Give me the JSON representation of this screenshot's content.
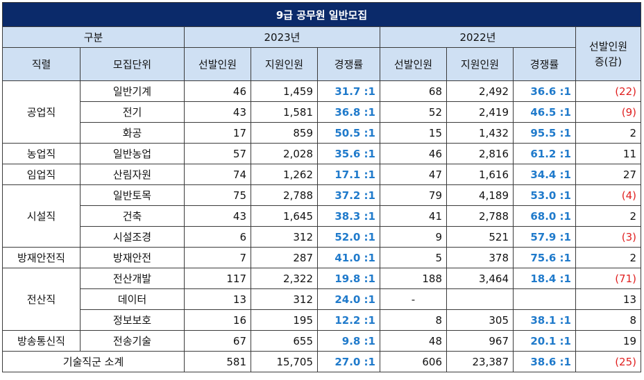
{
  "title": "9급 공무원 일반모집",
  "header": {
    "gubun": "구분",
    "year_2023": "2023년",
    "year_2022": "2022년",
    "change_label": "선발인원\n증(감)",
    "job": "직렬",
    "unit": "모집단위",
    "selected": "선발인원",
    "applicants": "지원인원",
    "rate": "경쟁률"
  },
  "groups": [
    {
      "job": "공업직",
      "rows": [
        {
          "unit": "일반기계",
          "s23": "46",
          "a23": "1,459",
          "r23": "31.7 :1",
          "s22": "68",
          "a22": "2,492",
          "r22": "36.6 :1",
          "chg": "(22)",
          "neg": true
        },
        {
          "unit": "전기",
          "s23": "43",
          "a23": "1,581",
          "r23": "36.8 :1",
          "s22": "52",
          "a22": "2,419",
          "r22": "46.5 :1",
          "chg": "(9)",
          "neg": true
        },
        {
          "unit": "화공",
          "s23": "17",
          "a23": "859",
          "r23": "50.5 :1",
          "s22": "15",
          "a22": "1,432",
          "r22": "95.5 :1",
          "chg": "2",
          "neg": false
        }
      ]
    },
    {
      "job": "농업직",
      "rows": [
        {
          "unit": "일반농업",
          "s23": "57",
          "a23": "2,028",
          "r23": "35.6 :1",
          "s22": "46",
          "a22": "2,816",
          "r22": "61.2 :1",
          "chg": "11",
          "neg": false
        }
      ]
    },
    {
      "job": "임업직",
      "rows": [
        {
          "unit": "산림자원",
          "s23": "74",
          "a23": "1,262",
          "r23": "17.1 :1",
          "s22": "47",
          "a22": "1,616",
          "r22": "34.4 :1",
          "chg": "27",
          "neg": false
        }
      ]
    },
    {
      "job": "시설직",
      "rows": [
        {
          "unit": "일반토목",
          "s23": "75",
          "a23": "2,788",
          "r23": "37.2 :1",
          "s22": "79",
          "a22": "4,189",
          "r22": "53.0 :1",
          "chg": "(4)",
          "neg": true
        },
        {
          "unit": "건축",
          "s23": "43",
          "a23": "1,645",
          "r23": "38.3 :1",
          "s22": "41",
          "a22": "2,788",
          "r22": "68.0 :1",
          "chg": "2",
          "neg": false
        },
        {
          "unit": "시설조경",
          "s23": "6",
          "a23": "312",
          "r23": "52.0 :1",
          "s22": "9",
          "a22": "521",
          "r22": "57.9 :1",
          "chg": "(3)",
          "neg": true
        }
      ]
    },
    {
      "job": "방재안전직",
      "rows": [
        {
          "unit": "방재안전",
          "s23": "7",
          "a23": "287",
          "r23": "41.0 :1",
          "s22": "5",
          "a22": "378",
          "r22": "75.6 :1",
          "chg": "2",
          "neg": false
        }
      ]
    },
    {
      "job": "전산직",
      "rows": [
        {
          "unit": "전산개발",
          "s23": "117",
          "a23": "2,322",
          "r23": "19.8 :1",
          "s22": "188",
          "a22": "3,464",
          "r22": "18.4 :1",
          "chg": "(71)",
          "neg": true
        },
        {
          "unit": "데이터",
          "s23": "13",
          "a23": "312",
          "r23": "24.0 :1",
          "s22": "-",
          "a22": "",
          "r22": "",
          "chg": "13",
          "neg": false,
          "dash": true
        },
        {
          "unit": "정보보호",
          "s23": "16",
          "a23": "195",
          "r23": "12.2 :1",
          "s22": "8",
          "a22": "305",
          "r22": "38.1 :1",
          "chg": "8",
          "neg": false
        }
      ]
    },
    {
      "job": "방송통신직",
      "rows": [
        {
          "unit": "전송기술",
          "s23": "67",
          "a23": "655",
          "r23": "9.8 :1",
          "s22": "48",
          "a22": "967",
          "r22": "20.1 :1",
          "chg": "19",
          "neg": false
        }
      ]
    }
  ],
  "subtotal": {
    "label": "기술직군 소계",
    "s23": "581",
    "a23": "15,705",
    "r23": "27.0 :1",
    "s22": "606",
    "a22": "23,387",
    "r22": "38.6 :1",
    "chg": "(25)"
  },
  "colors": {
    "title_bg": "#0b2a6a",
    "header_bg": "#cfe0f3",
    "rate": "#1f7acb",
    "negative": "#e02020"
  }
}
